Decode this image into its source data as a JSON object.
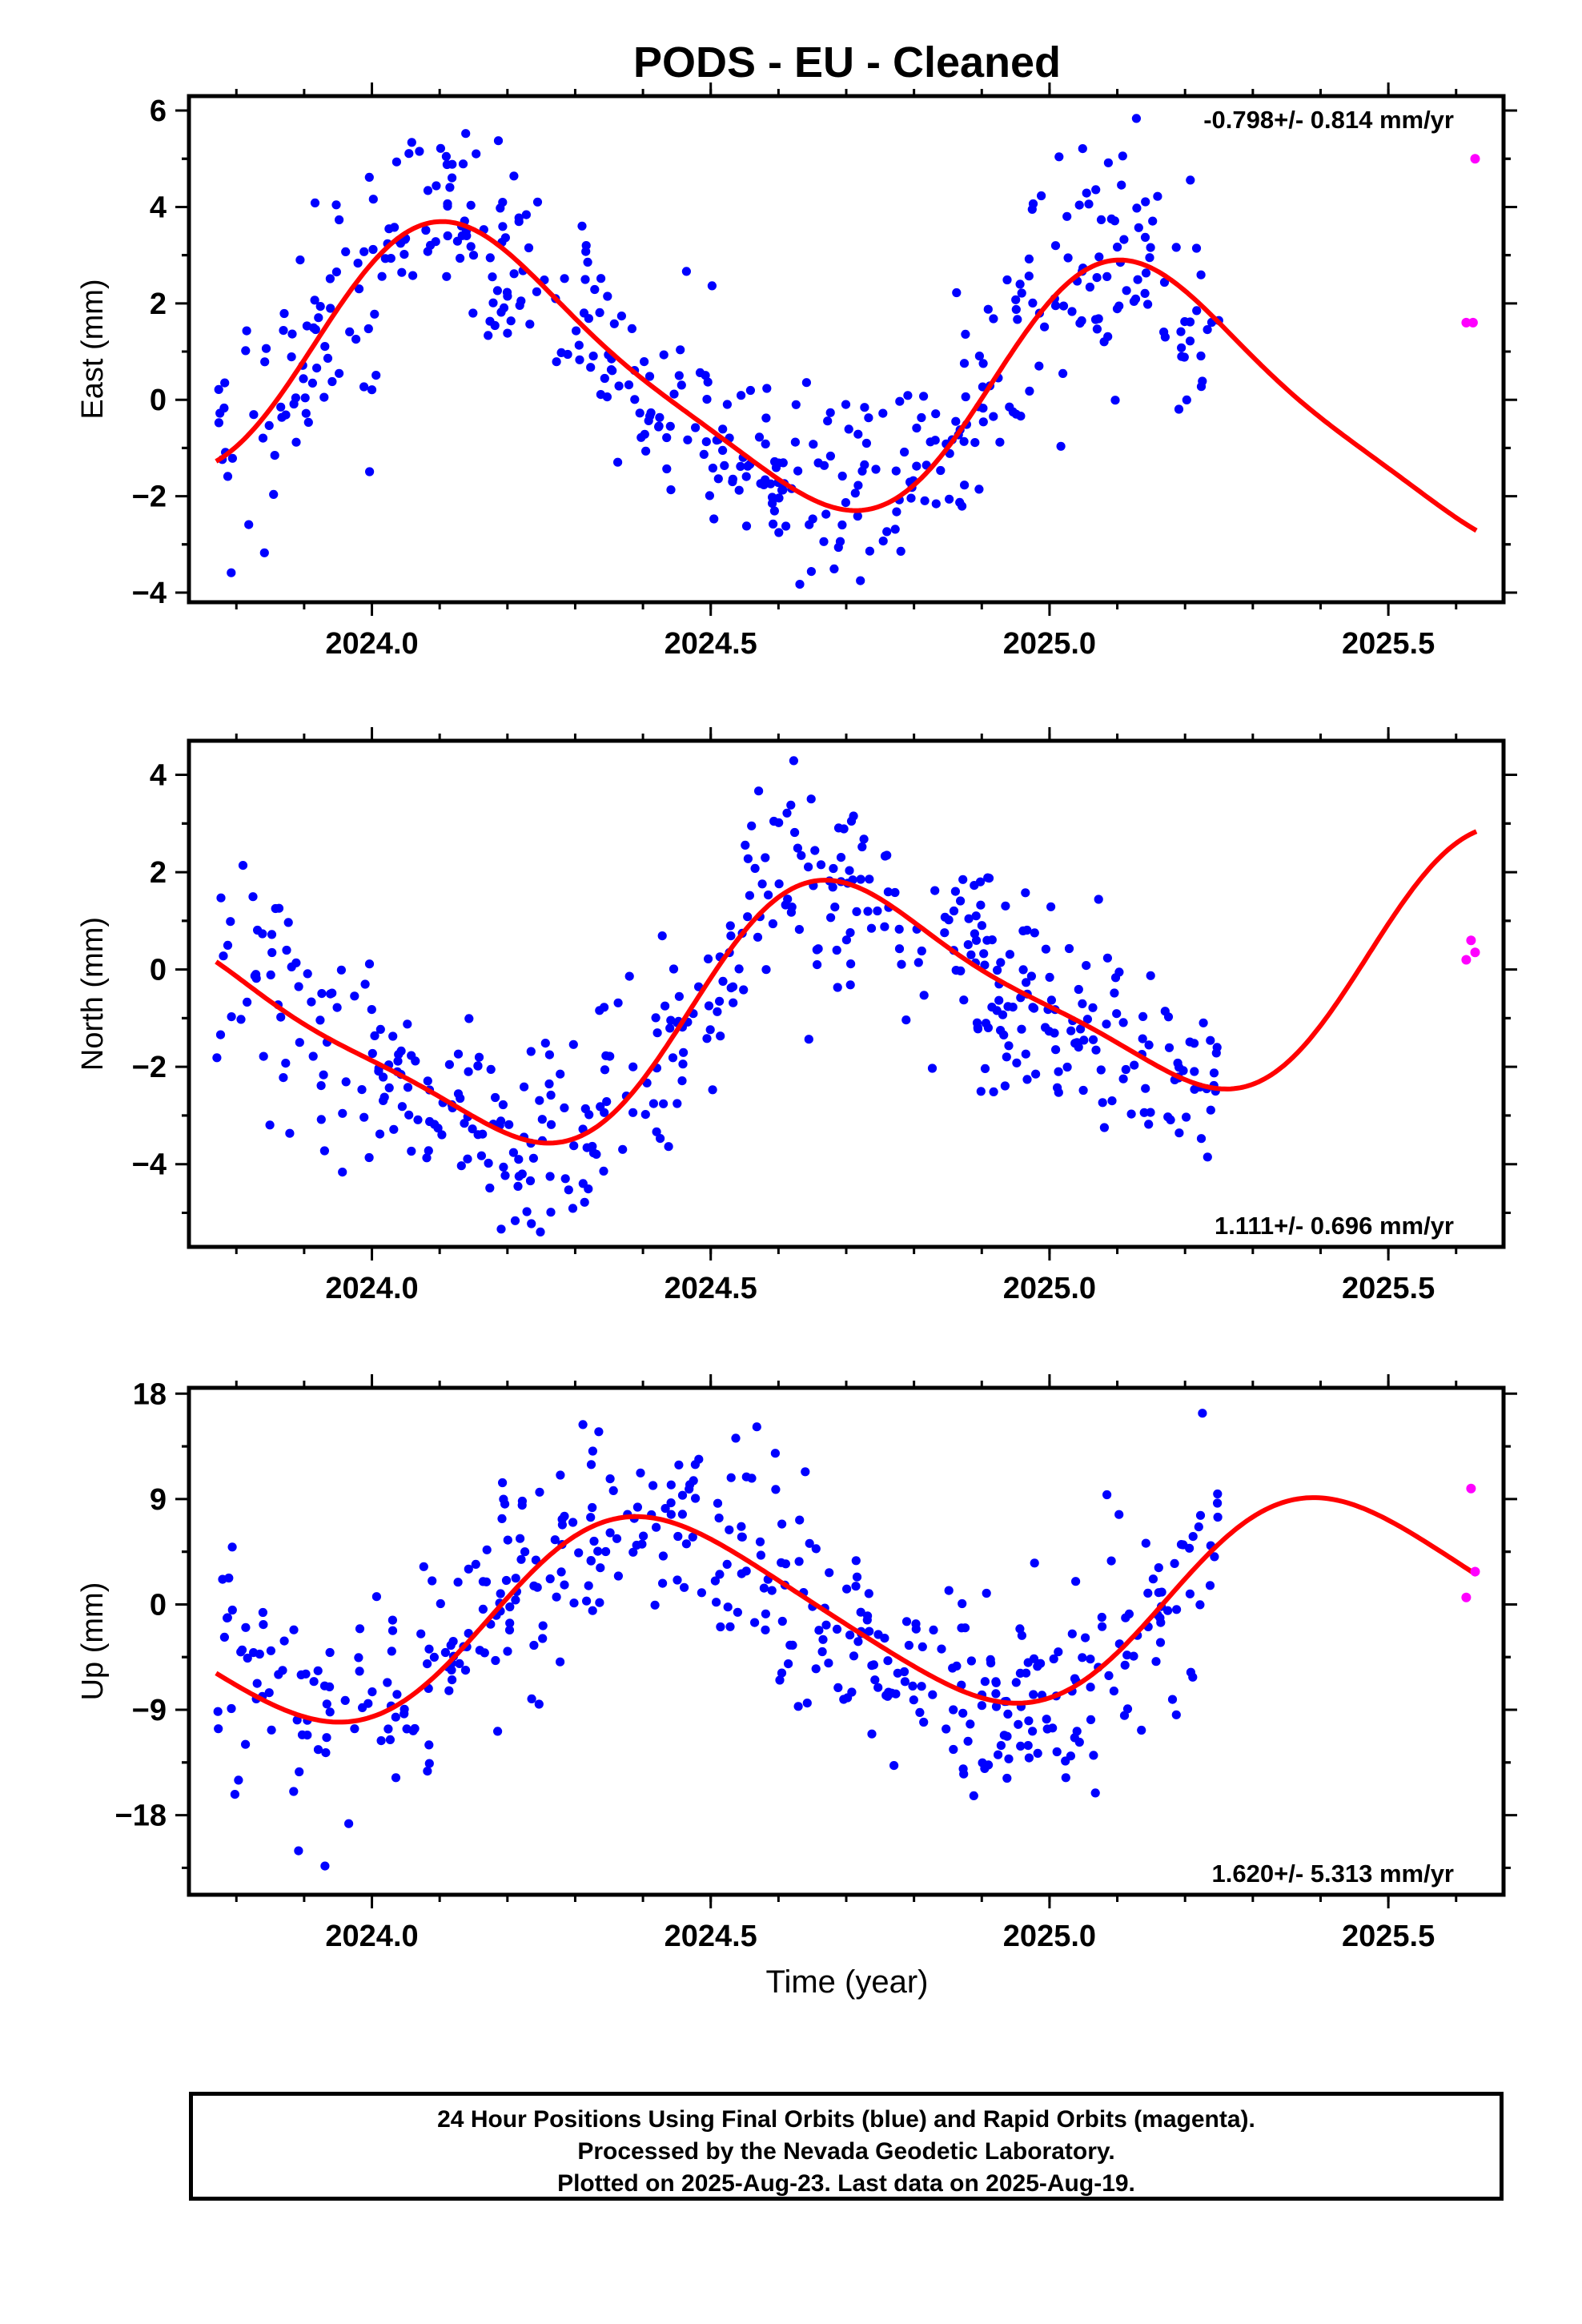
{
  "title": "PODS  - EU - Cleaned",
  "xlabel": "Time (year)",
  "footer": {
    "line1": "24 Hour Positions Using Final Orbits (blue) and Rapid Orbits (magenta).",
    "line2": "Processed by the Nevada Geodetic Laboratory.",
    "line3": "Plotted on 2025-Aug-23. Last data on 2025-Aug-19."
  },
  "colors": {
    "final": "#0000ff",
    "rapid": "#ff00ff",
    "fit": "#ff0000",
    "frame": "#000000"
  },
  "chart_data": [
    {
      "type": "scatter",
      "component": "east",
      "ylabel": "East (mm)",
      "rate_text": "-0.798+/- 0.814 mm/yr",
      "rate_position": "top-right",
      "xlim": [
        2023.73,
        2025.67
      ],
      "ylim": [
        -4.2,
        6.3
      ],
      "xticks": [
        2024.0,
        2024.5,
        2025.0,
        2025.5
      ],
      "xtick_labels": [
        "2024.0",
        "2024.5",
        "2025.0",
        "2025.5"
      ],
      "yticks": [
        -4,
        -2,
        0,
        2,
        4,
        6
      ],
      "ytick_labels": [
        "−4",
        "−2",
        "0",
        "2",
        "4",
        "6"
      ],
      "final_series": {
        "name": "Final Orbits",
        "x_range": [
          2023.77,
          2025.25
        ],
        "n_points": 460,
        "fit": {
          "offset": 0.5,
          "rate": -0.798,
          "amp1": 2.6,
          "phase1": 2024.15,
          "amp2": 0.5,
          "phase2": 2024.05
        },
        "scatter_sd": 1.15
      },
      "rapid_series": {
        "name": "Rapid Orbits",
        "x": [
          2025.615,
          2025.625,
          2025.628
        ],
        "y": [
          1.6,
          1.6,
          5.0
        ]
      },
      "fit_x_range": [
        2023.77,
        2025.63
      ]
    },
    {
      "type": "scatter",
      "component": "north",
      "ylabel": "North (mm)",
      "rate_text": "1.111+/- 0.696 mm/yr",
      "rate_position": "bottom-right",
      "xlim": [
        2023.73,
        2025.67
      ],
      "ylim": [
        -5.7,
        4.7
      ],
      "xticks": [
        2024.0,
        2024.5,
        2025.0,
        2025.5
      ],
      "xtick_labels": [
        "2024.0",
        "2024.5",
        "2025.0",
        "2025.5"
      ],
      "yticks": [
        -4,
        -2,
        0,
        2,
        4
      ],
      "ytick_labels": [
        "−4",
        "−2",
        "0",
        "2",
        "4"
      ],
      "final_series": {
        "name": "Final Orbits",
        "x_range": [
          2023.77,
          2025.25
        ],
        "n_points": 460,
        "fit": {
          "offset": -0.9,
          "rate": 1.111,
          "amp1": 2.3,
          "phase1": 2023.71,
          "amp2": 0.5,
          "phase2": 2023.6
        },
        "scatter_sd": 1.05
      },
      "rapid_series": {
        "name": "Rapid Orbits",
        "x": [
          2025.615,
          2025.622,
          2025.628
        ],
        "y": [
          0.2,
          0.6,
          0.35
        ]
      },
      "fit_x_range": [
        2023.77,
        2025.63
      ]
    },
    {
      "type": "scatter",
      "component": "up",
      "ylabel": "Up (mm)",
      "rate_text": "1.620+/- 5.313 mm/yr",
      "rate_position": "bottom-right",
      "xlim": [
        2023.73,
        2025.67
      ],
      "ylim": [
        -24.8,
        18.5
      ],
      "xticks": [
        2024.0,
        2024.5,
        2025.0,
        2025.5
      ],
      "xtick_labels": [
        "2024.0",
        "2024.5",
        "2025.0",
        "2025.5"
      ],
      "yticks": [
        -18,
        -9,
        0,
        9,
        18
      ],
      "ytick_labels": [
        "−18",
        "−9",
        "0",
        "9",
        "18"
      ],
      "final_series": {
        "name": "Final Orbits",
        "x_range": [
          2023.77,
          2025.25
        ],
        "n_points": 460,
        "fit": {
          "offset": -0.8,
          "rate": 1.62,
          "amp1": 8.2,
          "phase1": 2024.42,
          "amp2": 1.0,
          "phase2": 2024.3
        },
        "scatter_sd": 4.8
      },
      "rapid_series": {
        "name": "Rapid Orbits",
        "x": [
          2025.615,
          2025.622,
          2025.628
        ],
        "y": [
          0.6,
          9.9,
          2.8
        ]
      },
      "fit_x_range": [
        2023.77,
        2025.63
      ]
    }
  ]
}
